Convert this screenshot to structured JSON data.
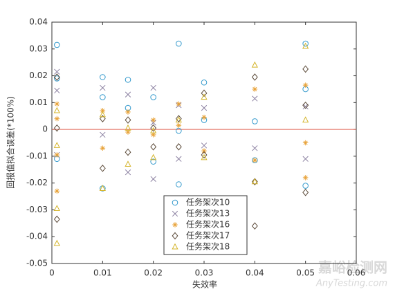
{
  "chart_data": {
    "type": "scatter",
    "xlabel": "失效率",
    "ylabel": "回报值拟合误差(*100%)",
    "xlim": [
      0,
      0.06
    ],
    "xticks": [
      0,
      0.01,
      0.02,
      0.03,
      0.04,
      0.05,
      0.06
    ],
    "ylim": [
      -0.05,
      0.04
    ],
    "yticks": [
      -0.05,
      -0.04,
      -0.03,
      -0.02,
      -0.01,
      0,
      0.01,
      0.02,
      0.03,
      0.04
    ],
    "reference_line": {
      "y": 0,
      "color": "#e06050"
    },
    "legend": "lower center",
    "watermark": [
      "嘉峪检测网",
      "AnyTesting.com"
    ],
    "series": [
      {
        "name": "任务架次10",
        "marker": "circle",
        "color": "#3399cc",
        "x": [
          0.001,
          0.001,
          0.001,
          0.01,
          0.01,
          0.01,
          0.015,
          0.015,
          0.02,
          0.02,
          0.025,
          0.025,
          0.025,
          0.03,
          0.03,
          0.04,
          0.04,
          0.05,
          0.05,
          0.05
        ],
        "values": [
          0.0315,
          0.019,
          -0.011,
          0.0195,
          0.012,
          -0.022,
          0.0185,
          0.008,
          0.012,
          -0.012,
          0.032,
          -0.0005,
          -0.0205,
          0.0175,
          0.0035,
          0.003,
          -0.0115,
          0.032,
          0.015,
          -0.021
        ]
      },
      {
        "name": "任务架次13",
        "marker": "x",
        "color": "#8a7fa0",
        "x": [
          0.001,
          0.001,
          0.001,
          0.01,
          0.01,
          0.015,
          0.015,
          0.02,
          0.02,
          0.02,
          0.025,
          0.025,
          0.03,
          0.03,
          0.04,
          0.04,
          0.05,
          0.05
        ],
        "values": [
          0.0215,
          0.0145,
          -0.0095,
          0.0155,
          -0.002,
          0.013,
          -0.016,
          0.0155,
          0.0025,
          -0.0185,
          0.009,
          -0.011,
          0.008,
          -0.006,
          0.0115,
          -0.007,
          0.0085,
          -0.011
        ]
      },
      {
        "name": "任务架次16",
        "marker": "star",
        "color": "#e8a33a",
        "x": [
          0.001,
          0.001,
          0.001,
          0.001,
          0.01,
          0.01,
          0.015,
          0.015,
          0.02,
          0.02,
          0.025,
          0.025,
          0.03,
          0.03,
          0.04,
          0.04,
          0.05,
          0.05,
          0.05
        ],
        "values": [
          0.0095,
          0.004,
          -0.0095,
          -0.023,
          0.007,
          -0.007,
          0.0065,
          -0.001,
          0.0035,
          -0.002,
          0.0095,
          0.0015,
          0.0045,
          -0.008,
          0.015,
          -0.0115,
          0.0165,
          -0.005,
          -0.018
        ]
      },
      {
        "name": "任务架次17",
        "marker": "diamond",
        "color": "#5c4b3a",
        "x": [
          0.001,
          0.001,
          0.001,
          0.01,
          0.01,
          0.015,
          0.015,
          0.02,
          0.02,
          0.025,
          0.025,
          0.03,
          0.03,
          0.04,
          0.04,
          0.04,
          0.05,
          0.05,
          0.05
        ],
        "values": [
          0.0195,
          0.0005,
          -0.0335,
          0.004,
          -0.0145,
          0.0035,
          -0.0085,
          0.0005,
          -0.0065,
          0.004,
          -0.0065,
          0.0135,
          -0.0095,
          0.0195,
          -0.0195,
          -0.036,
          0.0225,
          0.009,
          -0.0235
        ]
      },
      {
        "name": "任务架次18",
        "marker": "triangle",
        "color": "#d4b42a",
        "x": [
          0.001,
          0.001,
          0.001,
          0.001,
          0.01,
          0.01,
          0.015,
          0.015,
          0.02,
          0.02,
          0.025,
          0.03,
          0.03,
          0.04,
          0.04,
          0.05,
          0.05
        ],
        "values": [
          0.007,
          -0.006,
          -0.0295,
          -0.0425,
          0.0055,
          -0.022,
          0.0005,
          -0.013,
          -0.0005,
          -0.0105,
          0.0035,
          0.012,
          -0.0105,
          0.024,
          -0.0195,
          0.031,
          0.0035
        ]
      }
    ]
  }
}
